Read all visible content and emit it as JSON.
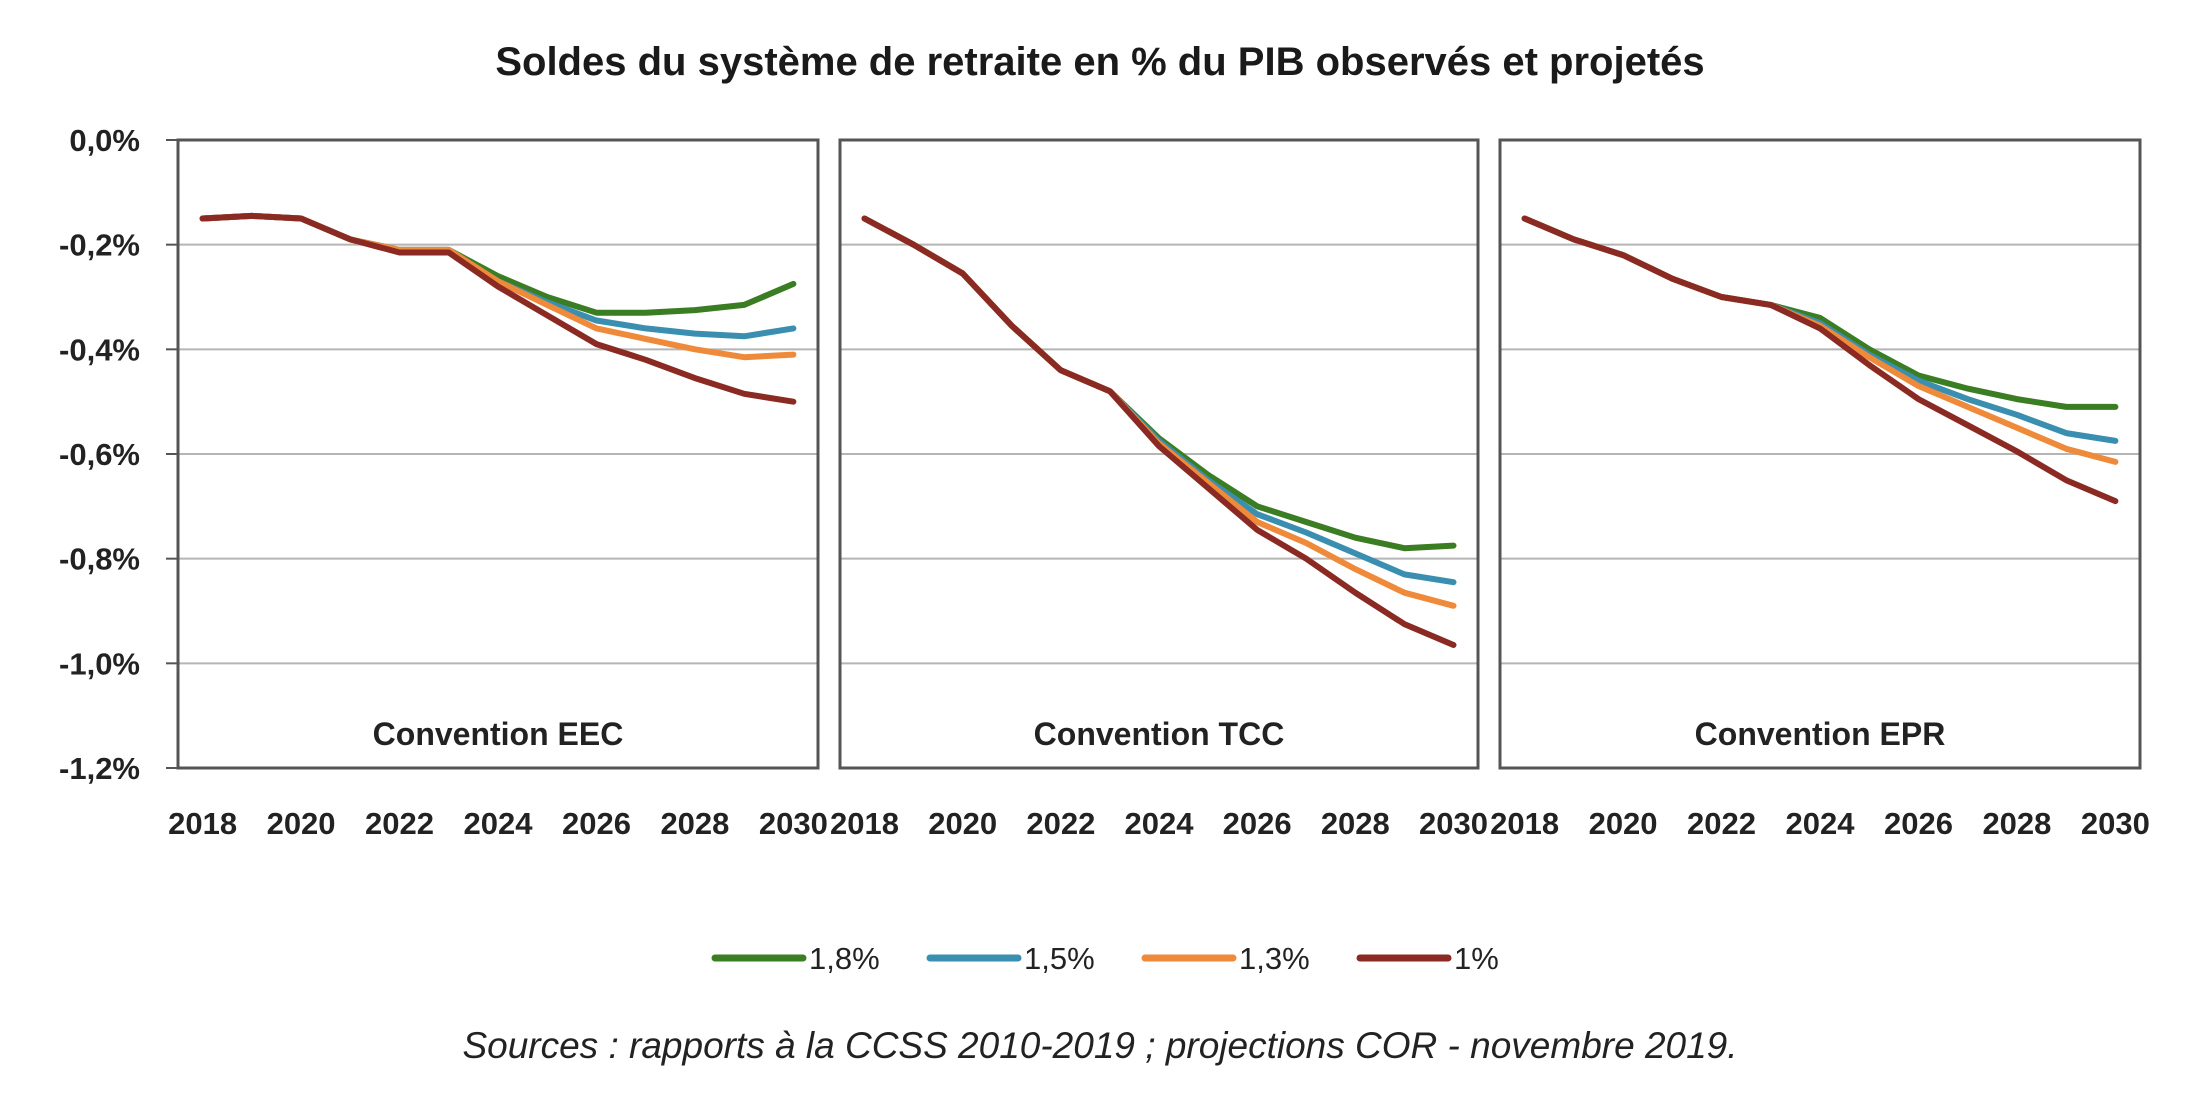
{
  "chart_data": {
    "type": "line",
    "title": "Soldes du système de retraite en % du PIB observés et projetés",
    "y_ticks": [
      "0,0%",
      "-0,2%",
      "-0,4%",
      "-0,6%",
      "-0,8%",
      "-1,0%",
      "-1,2%"
    ],
    "x_ticks": [
      "2018",
      "2020",
      "2022",
      "2024",
      "2026",
      "2028",
      "2030"
    ],
    "ylim": [
      -1.2,
      0
    ],
    "xlim": [
      2017.5,
      2030.5
    ],
    "grid": true,
    "legend_position": "bottom",
    "x": [
      2018,
      2019,
      2020,
      2021,
      2022,
      2023,
      2024,
      2025,
      2026,
      2027,
      2028,
      2029,
      2030
    ],
    "colors": {
      "1,8%": "#3a7d22",
      "1,5%": "#3a8fb0",
      "1,3%": "#ee8a3a",
      "1%": "#8b2a22"
    },
    "panels": [
      {
        "label": "Convention EEC",
        "series": [
          {
            "name": "1,8%",
            "values": [
              -0.15,
              -0.145,
              -0.15,
              -0.19,
              -0.21,
              -0.21,
              -0.26,
              -0.3,
              -0.33,
              -0.33,
              -0.325,
              -0.315,
              -0.275
            ]
          },
          {
            "name": "1,5%",
            "values": [
              -0.15,
              -0.145,
              -0.15,
              -0.19,
              -0.21,
              -0.21,
              -0.27,
              -0.31,
              -0.345,
              -0.36,
              -0.37,
              -0.375,
              -0.36
            ]
          },
          {
            "name": "1,3%",
            "values": [
              -0.15,
              -0.145,
              -0.15,
              -0.19,
              -0.21,
              -0.21,
              -0.27,
              -0.315,
              -0.36,
              -0.38,
              -0.4,
              -0.415,
              -0.41
            ]
          },
          {
            "name": "1%",
            "values": [
              -0.15,
              -0.145,
              -0.15,
              -0.19,
              -0.215,
              -0.215,
              -0.28,
              -0.335,
              -0.39,
              -0.42,
              -0.455,
              -0.485,
              -0.5
            ]
          }
        ]
      },
      {
        "label": "Convention TCC",
        "series": [
          {
            "name": "1,8%",
            "values": [
              -0.15,
              -0.2,
              -0.255,
              -0.355,
              -0.44,
              -0.48,
              -0.57,
              -0.64,
              -0.7,
              -0.73,
              -0.76,
              -0.78,
              -0.775
            ]
          },
          {
            "name": "1,5%",
            "values": [
              -0.15,
              -0.2,
              -0.255,
              -0.355,
              -0.44,
              -0.48,
              -0.575,
              -0.65,
              -0.715,
              -0.75,
              -0.79,
              -0.83,
              -0.845
            ]
          },
          {
            "name": "1,3%",
            "values": [
              -0.15,
              -0.2,
              -0.255,
              -0.355,
              -0.44,
              -0.48,
              -0.58,
              -0.655,
              -0.73,
              -0.77,
              -0.82,
              -0.865,
              -0.89
            ]
          },
          {
            "name": "1%",
            "values": [
              -0.15,
              -0.2,
              -0.255,
              -0.355,
              -0.44,
              -0.48,
              -0.585,
              -0.665,
              -0.745,
              -0.8,
              -0.865,
              -0.925,
              -0.965
            ]
          }
        ]
      },
      {
        "label": "Convention EPR",
        "series": [
          {
            "name": "1,8%",
            "values": [
              -0.15,
              -0.19,
              -0.22,
              -0.265,
              -0.3,
              -0.315,
              -0.34,
              -0.4,
              -0.45,
              -0.475,
              -0.495,
              -0.51,
              -0.51
            ]
          },
          {
            "name": "1,5%",
            "values": [
              -0.15,
              -0.19,
              -0.22,
              -0.265,
              -0.3,
              -0.315,
              -0.35,
              -0.41,
              -0.46,
              -0.495,
              -0.525,
              -0.56,
              -0.575
            ]
          },
          {
            "name": "1,3%",
            "values": [
              -0.15,
              -0.19,
              -0.22,
              -0.265,
              -0.3,
              -0.315,
              -0.355,
              -0.415,
              -0.47,
              -0.51,
              -0.55,
              -0.59,
              -0.615
            ]
          },
          {
            "name": "1%",
            "values": [
              -0.15,
              -0.19,
              -0.22,
              -0.265,
              -0.3,
              -0.315,
              -0.36,
              -0.43,
              -0.495,
              -0.545,
              -0.595,
              -0.65,
              -0.69
            ]
          }
        ]
      }
    ],
    "legend": [
      "1,8%",
      "1,5%",
      "1,3%",
      "1%"
    ]
  },
  "source": "Sources : rapports à la CCSS 2010-2019 ; projections COR - novembre 2019."
}
